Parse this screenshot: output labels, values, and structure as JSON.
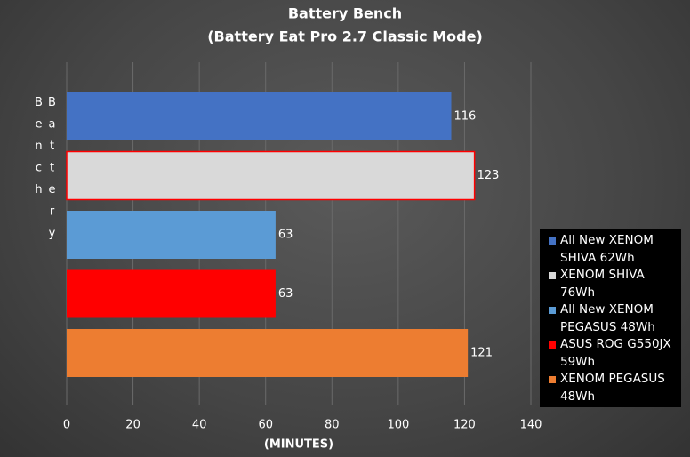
{
  "chart_data": {
    "type": "bar",
    "orientation": "horizontal",
    "title": "Battery Bench",
    "subtitle": "(Battery Eat Pro 2.7 Classic Mode)",
    "x_label": "(MINUTES)",
    "y_label": "Battery Bench",
    "categories": [
      null
    ],
    "series": [
      {
        "name": "All New XENOM SHIVA 62Wh",
        "color": "#4472c4",
        "values": [
          116
        ]
      },
      {
        "name": "XENOM SHIVA 76Wh",
        "color": "#d9d9d9",
        "border": "#ff0000",
        "values": [
          123
        ]
      },
      {
        "name": "All New XENOM PEGASUS 48Wh",
        "color": "#5b9bd5",
        "values": [
          63
        ]
      },
      {
        "name": "ASUS ROG G550JX 59Wh",
        "color": "#ff0000",
        "values": [
          63
        ]
      },
      {
        "name": "XENOM PEGASUS 48Wh",
        "color": "#ed7d31",
        "values": [
          121
        ]
      }
    ],
    "xlim": [
      0,
      140
    ],
    "xticks": [
      0,
      20,
      40,
      60,
      80,
      100,
      120,
      140
    ],
    "grid": true,
    "legend": "right"
  }
}
